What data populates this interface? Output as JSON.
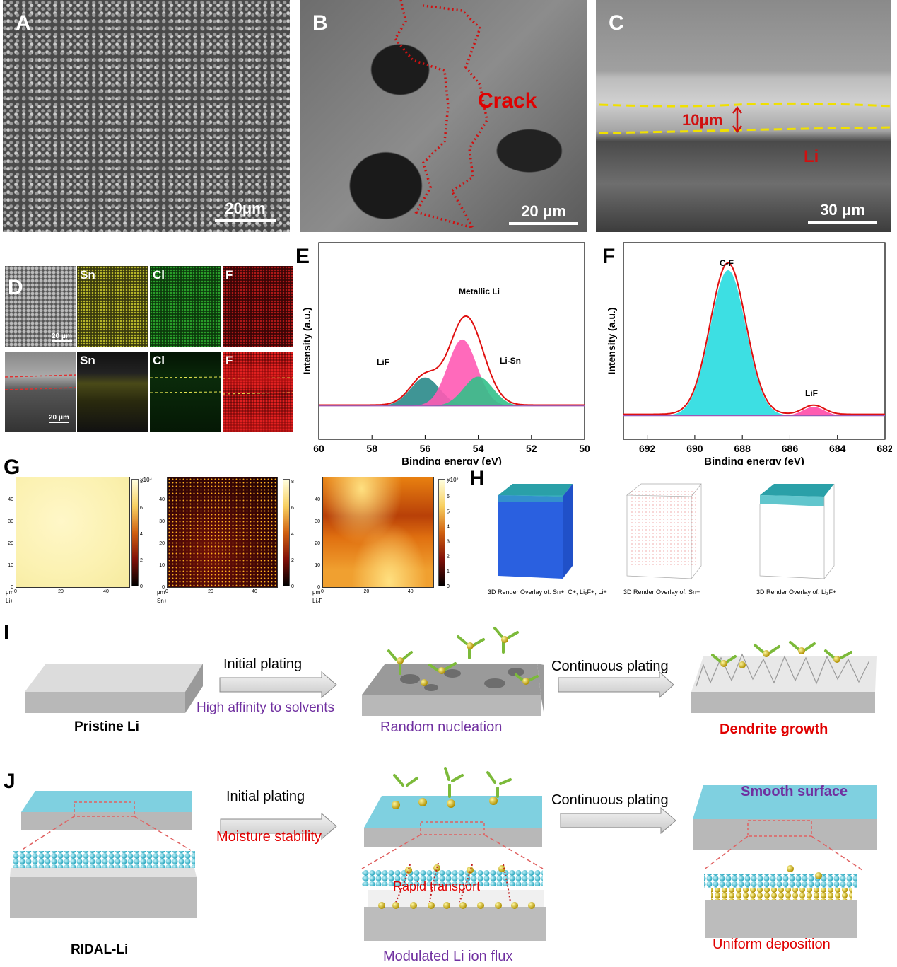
{
  "panels": {
    "A": {
      "letter": "A",
      "scale": "20μm"
    },
    "B": {
      "letter": "B",
      "annotation": "Crack",
      "scale": "20 μm"
    },
    "C": {
      "letter": "C",
      "thickness": "10μm",
      "layer": "Li",
      "scale": "30 μm"
    },
    "D": {
      "letter": "D",
      "maps": [
        "Sn",
        "Cl",
        "F"
      ],
      "scale_top": "20 μm",
      "scale_bottom": "20 μm"
    },
    "E": {
      "letter": "E"
    },
    "F": {
      "letter": "F"
    },
    "G": {
      "letter": "G",
      "units": "μm",
      "maps": [
        {
          "ion": "Li+",
          "scale_note": "×10⁴",
          "ticks": [
            "8",
            "6",
            "4",
            "2",
            "0"
          ]
        },
        {
          "ion": "Sn+",
          "ticks": [
            "8",
            "6",
            "4",
            "2",
            "0"
          ]
        },
        {
          "ion": "Li₂F+",
          "scale_note": "×10²",
          "ticks": [
            "7",
            "6",
            "5",
            "4",
            "3",
            "2",
            "1",
            "0"
          ]
        }
      ],
      "axis_ticks": [
        "0",
        "10",
        "20",
        "30",
        "40"
      ],
      "x_ticks": [
        "0",
        "20",
        "40"
      ]
    },
    "H": {
      "letter": "H",
      "captions": [
        "3D Render Overlay of: Sn+, C+, Li₂F+, Li+",
        "3D Render Overlay of: Sn+",
        "3D Render Overlay of: Li₂F+"
      ]
    },
    "I": {
      "letter": "I",
      "start": "Pristine Li",
      "step1": "Initial plating",
      "step1_note": "High affinity to solvents",
      "mid": "Random nucleation",
      "step2": "Continuous plating",
      "end": "Dendrite growth"
    },
    "J": {
      "letter": "J",
      "start": "RIDAL-Li",
      "step1": "Initial plating",
      "step1_note": "Moisture stability",
      "mid_note": "Rapid transport",
      "mid": "Modulated Li ion flux",
      "step2": "Continuous plating",
      "end_top": "Smooth surface",
      "end": "Uniform deposition"
    }
  },
  "chart_data": [
    {
      "type": "line",
      "panel": "E",
      "xlabel": "Binding energy (eV)",
      "ylabel": "Intensity (a.u.)",
      "xlim": [
        60,
        50
      ],
      "x_ticks": [
        60,
        58,
        56,
        54,
        52,
        50
      ],
      "series": [
        {
          "name": "LiF",
          "center": 56.0,
          "height": 0.32,
          "width": 0.55
        },
        {
          "name": "Metallic Li",
          "center": 54.6,
          "height": 0.75,
          "width": 0.55
        },
        {
          "name": "Li-Sn",
          "center": 54.0,
          "height": 0.33,
          "width": 0.55
        }
      ],
      "labels": [
        "LiF",
        "Metallic Li",
        "Li-Sn"
      ]
    },
    {
      "type": "line",
      "panel": "F",
      "xlabel": "Binding energy (eV)",
      "ylabel": "Intensity (a.u.)",
      "xlim": [
        693,
        682
      ],
      "x_ticks": [
        692,
        690,
        688,
        686,
        684,
        682
      ],
      "series": [
        {
          "name": "C-F",
          "center": 688.6,
          "height": 1.0,
          "width": 0.75
        },
        {
          "name": "LiF",
          "center": 685.0,
          "height": 0.06,
          "width": 0.45
        }
      ],
      "labels": [
        "C-F",
        "LiF"
      ]
    }
  ],
  "colors": {
    "red": "#e00000",
    "purple": "#7030a0",
    "cyan": "#28c8dc",
    "pink": "#ff5ab4",
    "teal": "#2a8a8a",
    "green": "#33c08a"
  }
}
